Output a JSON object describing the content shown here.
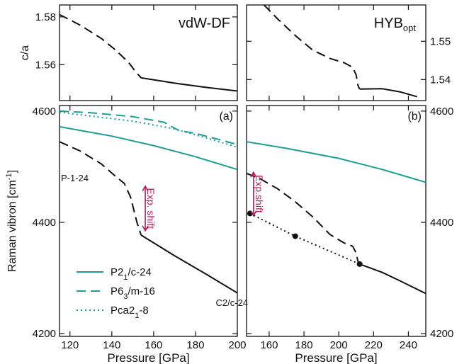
{
  "colors": {
    "teal": "#1a9e96",
    "black": "#111111",
    "crimson": "#c2185b"
  },
  "chart_data": [
    {
      "id": "top_left",
      "type": "line",
      "title": "vdW-DF",
      "xlabel": "",
      "ylabel": "c/a",
      "xlim": [
        115,
        200
      ],
      "ylim": [
        1.545,
        1.585
      ],
      "y_ticks": [
        1.56,
        1.58
      ],
      "y_tick_labels": [
        "1.56",
        "1.58"
      ],
      "series": [
        {
          "style": "dashed",
          "color": "black",
          "x": [
            115,
            125,
            135,
            142,
            148,
            151,
            153,
            154
          ],
          "y": [
            1.581,
            1.5765,
            1.571,
            1.566,
            1.561,
            1.5575,
            1.5555,
            1.5545
          ]
        },
        {
          "style": "solid",
          "color": "black",
          "x": [
            154,
            170,
            185,
            200
          ],
          "y": [
            1.5545,
            1.5523,
            1.5505,
            1.549
          ]
        }
      ]
    },
    {
      "id": "top_right",
      "type": "line",
      "title": "HYB",
      "title_sub": "opt",
      "xlabel": "",
      "ylabel": "",
      "xlim": [
        147,
        250
      ],
      "ylim": [
        1.5345,
        1.5595
      ],
      "y_ticks": [
        1.54,
        1.55
      ],
      "y_tick_labels": [
        "1.54",
        "1.55"
      ],
      "series": [
        {
          "style": "dashed",
          "color": "black",
          "x": [
            157,
            165,
            175,
            185,
            195,
            203,
            208,
            210,
            211,
            212
          ],
          "y": [
            1.5595,
            1.5558,
            1.5515,
            1.5477,
            1.5455,
            1.5444,
            1.5432,
            1.5412,
            1.5385,
            1.5375
          ]
        },
        {
          "style": "solid",
          "color": "black",
          "x": [
            212,
            225,
            235,
            245
          ],
          "y": [
            1.5375,
            1.5376,
            1.5368,
            1.5355
          ]
        }
      ]
    },
    {
      "id": "bottom_left",
      "type": "line",
      "panel_label": "(a)",
      "xlabel": "Pressure [GPa]",
      "ylabel": "Raman vibron [cm-1]",
      "xlim": [
        115,
        200
      ],
      "ylim": [
        4195,
        4610
      ],
      "x_ticks": [
        120,
        140,
        160,
        180,
        200
      ],
      "x_tick_labels": [
        "120",
        "140",
        "160",
        "180",
        "200"
      ],
      "y_ticks": [
        4200,
        4400,
        4600
      ],
      "y_tick_labels": [
        "4200",
        "4400",
        "4600"
      ],
      "series": [
        {
          "name": "P2₁/c-24",
          "style": "solid",
          "color": "teal",
          "x": [
            115,
            140,
            160,
            180,
            200
          ],
          "y": [
            4572,
            4555,
            4538,
            4518,
            4495
          ]
        },
        {
          "name": "P6₃/m-16",
          "style": "dashed",
          "color": "teal",
          "x": [
            115,
            130,
            150,
            165,
            172,
            180,
            200
          ],
          "y": [
            4600,
            4597,
            4590,
            4580,
            4565,
            4560,
            4540
          ]
        },
        {
          "name": "Pca2₁-8",
          "style": "dotted",
          "color": "teal",
          "x": [
            115,
            130,
            150,
            170,
            185,
            200
          ],
          "y": [
            4598,
            4591,
            4582,
            4568,
            4552,
            4535
          ]
        },
        {
          "style": "dashed",
          "color": "black",
          "x": [
            115,
            125,
            135,
            142,
            146,
            149,
            152,
            154
          ],
          "y": [
            4545,
            4528,
            4505,
            4482,
            4470,
            4445,
            4400,
            4377
          ]
        },
        {
          "style": "solid",
          "color": "black",
          "x": [
            154,
            170,
            185,
            200
          ],
          "y": [
            4377,
            4340,
            4307,
            4273
          ]
        }
      ],
      "annotations": [
        {
          "text": "P-1-24",
          "x": 115,
          "y": 4480
        },
        {
          "text": "C2/c-24",
          "x": 189,
          "y": 4256
        },
        {
          "text": "Exp. shift",
          "x": 156,
          "y1": 4465,
          "y2": 4385,
          "color": "crimson"
        }
      ],
      "legend_position": "lower-left"
    },
    {
      "id": "bottom_right",
      "type": "line",
      "panel_label": "(b)",
      "xlabel": "Pressure [GPa]",
      "ylabel": "",
      "xlim": [
        147,
        250
      ],
      "ylim": [
        4195,
        4610
      ],
      "x_ticks": [
        160,
        180,
        200,
        220,
        240
      ],
      "x_tick_labels": [
        "160",
        "180",
        "200",
        "220",
        "240"
      ],
      "y_ticks": [
        4200,
        4400,
        4600
      ],
      "y_tick_labels": [
        "4200",
        "4400",
        "4600"
      ],
      "series": [
        {
          "style": "solid",
          "color": "teal",
          "x": [
            147,
            170,
            200,
            225,
            250
          ],
          "y": [
            4545,
            4533,
            4515,
            4495,
            4472
          ]
        },
        {
          "style": "dashed",
          "color": "black",
          "x": [
            147,
            155,
            165,
            175,
            185,
            195,
            203,
            208,
            210,
            211,
            212
          ],
          "y": [
            4488,
            4478,
            4460,
            4437,
            4410,
            4378,
            4363,
            4357,
            4345,
            4330,
            4325
          ]
        },
        {
          "style": "solid",
          "color": "black",
          "x": [
            212,
            225,
            235,
            250
          ],
          "y": [
            4325,
            4310,
            4295,
            4272
          ]
        },
        {
          "style": "dotted",
          "color": "black",
          "x": [
            149,
            175,
            212
          ],
          "y": [
            4416,
            4375,
            4325
          ],
          "markers": true
        }
      ],
      "annotations": [
        {
          "text": "Exp.shift",
          "x": 151,
          "y1": 4490,
          "y2": 4412,
          "color": "crimson"
        }
      ]
    }
  ]
}
